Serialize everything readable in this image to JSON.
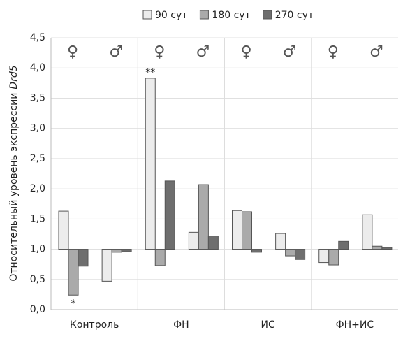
{
  "chart_data": {
    "type": "bar",
    "baseline": 1,
    "ylabel": "Относительный уровень экспрессии",
    "ylabel_gene": "Drd5",
    "groups": [
      "Контроль",
      "ФН",
      "ИС",
      "ФН+ИС"
    ],
    "categories": [
      "♀",
      "♂",
      "♀",
      "♂",
      "♀",
      "♂",
      "♀",
      "♂"
    ],
    "series": [
      {
        "name": "90 сут",
        "color": "#ececec",
        "values": [
          1.63,
          0.47,
          3.83,
          1.28,
          1.64,
          1.26,
          0.78,
          1.57
        ]
      },
      {
        "name": "180 сут",
        "color": "#aaaaaa",
        "values": [
          0.24,
          0.95,
          0.73,
          2.07,
          1.62,
          0.89,
          0.74,
          1.05
        ]
      },
      {
        "name": "270 сут",
        "color": "#6e6e6e",
        "values": [
          0.72,
          0.96,
          2.13,
          1.22,
          0.95,
          0.83,
          1.13,
          1.03
        ]
      }
    ],
    "annotations": [
      {
        "text": "**",
        "series": 0,
        "category": 2
      },
      {
        "text": "*",
        "series": 1,
        "category": 0
      }
    ],
    "ylim": [
      0,
      4.5
    ],
    "yticks": [
      {
        "value": 0,
        "label": "0,0"
      },
      {
        "value": 0.5,
        "label": "0,5"
      },
      {
        "value": 1,
        "label": "1,0"
      },
      {
        "value": 1.5,
        "label": "1,5"
      },
      {
        "value": 2,
        "label": "2,0"
      },
      {
        "value": 2.5,
        "label": "2,5"
      },
      {
        "value": 3,
        "label": "3,0"
      },
      {
        "value": 3.5,
        "label": "3,5"
      },
      {
        "value": 4,
        "label": "4,0"
      },
      {
        "value": 4.5,
        "label": "4,5"
      }
    ],
    "grid": true,
    "legend": "top"
  }
}
